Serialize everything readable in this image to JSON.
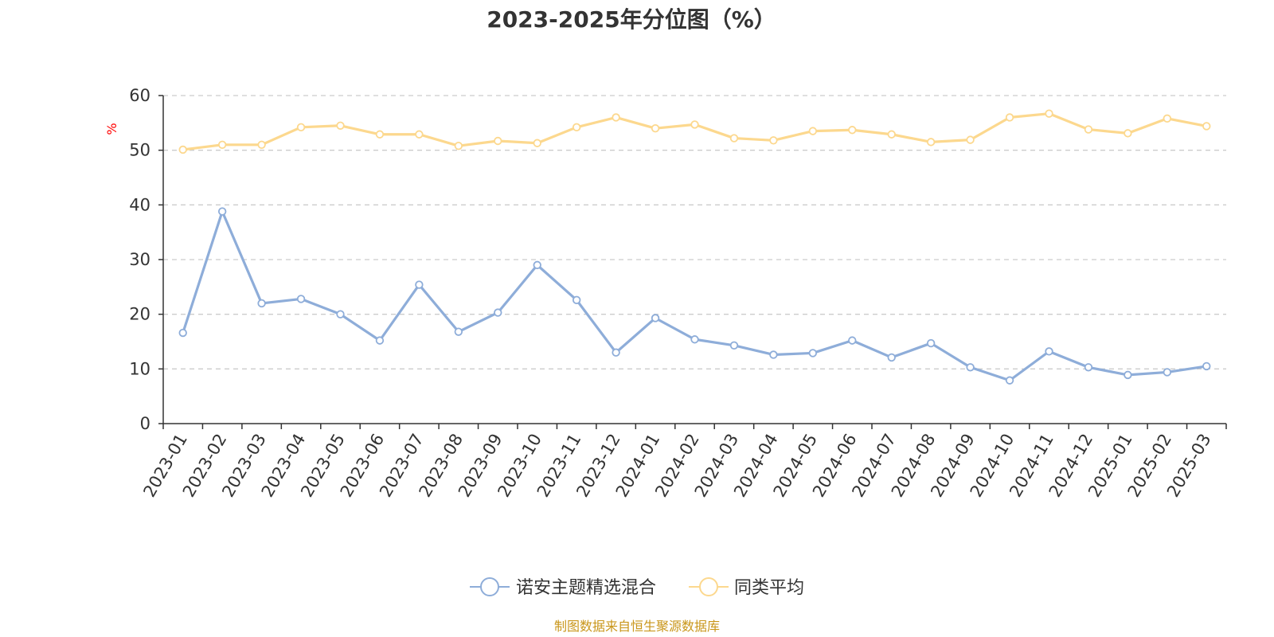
{
  "colors": {
    "series_1": "#8eadd9",
    "series_2": "#fcd88e",
    "grid": "#cccccc",
    "axis": "#333333",
    "ylabel": "#ff0000",
    "source": "#c9961a",
    "title": "#333333"
  },
  "source_text": "制图数据来自恒生聚源数据库",
  "chart_data": {
    "type": "line",
    "title": "2023-2025年分位图（%）",
    "xlabel": "",
    "ylabel": "%",
    "ylim": [
      0,
      60
    ],
    "yticks": [
      0,
      10,
      20,
      30,
      40,
      50,
      60
    ],
    "grid": true,
    "legend_position": "bottom",
    "categories": [
      "2023-01",
      "2023-02",
      "2023-03",
      "2023-04",
      "2023-05",
      "2023-06",
      "2023-07",
      "2023-08",
      "2023-09",
      "2023-10",
      "2023-11",
      "2023-12",
      "2024-01",
      "2024-02",
      "2024-03",
      "2024-04",
      "2024-05",
      "2024-06",
      "2024-07",
      "2024-08",
      "2024-09",
      "2024-10",
      "2024-11",
      "2024-12",
      "2025-01",
      "2025-02",
      "2025-03"
    ],
    "series": [
      {
        "name": "诺安主题精选混合",
        "values": [
          16.6,
          38.8,
          22.0,
          22.8,
          20.0,
          15.2,
          25.4,
          16.8,
          20.3,
          29.0,
          22.6,
          13.0,
          19.3,
          15.4,
          14.3,
          12.6,
          12.9,
          15.2,
          12.1,
          14.7,
          10.3,
          7.9,
          13.2,
          10.3,
          8.9,
          9.4,
          10.5
        ]
      },
      {
        "name": "同类平均",
        "values": [
          50.1,
          51.0,
          51.0,
          54.2,
          54.5,
          52.9,
          52.9,
          50.8,
          51.7,
          51.3,
          54.2,
          56.0,
          54.0,
          54.7,
          52.2,
          51.8,
          53.5,
          53.7,
          52.9,
          51.5,
          51.9,
          56.0,
          56.7,
          53.8,
          53.1,
          55.8,
          54.4
        ]
      }
    ]
  }
}
